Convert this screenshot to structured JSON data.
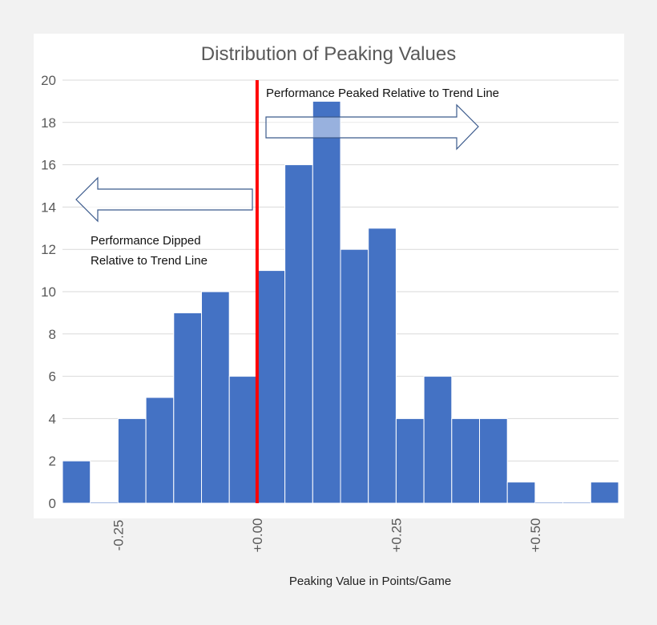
{
  "chart_data": {
    "type": "bar",
    "title": "Distribution of Peaking Values",
    "xlabel": "Peaking Value in Points/Game",
    "ylabel": "",
    "ylim": [
      0,
      20
    ],
    "yticks": [
      "0",
      "2",
      "4",
      "6",
      "8",
      "10",
      "12",
      "14",
      "16",
      "18",
      "20"
    ],
    "bin_width": 0.05,
    "bin_starts": [
      -0.35,
      -0.3,
      -0.25,
      -0.2,
      -0.15,
      -0.1,
      -0.05,
      0.0,
      0.05,
      0.1,
      0.15,
      0.2,
      0.25,
      0.3,
      0.35,
      0.4,
      0.45,
      0.5,
      0.55,
      0.6
    ],
    "values": [
      2,
      0,
      4,
      5,
      9,
      10,
      6,
      11,
      16,
      19,
      12,
      13,
      4,
      6,
      4,
      4,
      1,
      0,
      0,
      1
    ],
    "xticks": [
      {
        "value": -0.25,
        "label": "-0.25"
      },
      {
        "value": 0.0,
        "label": "+0.00"
      },
      {
        "value": 0.25,
        "label": "+0.25"
      },
      {
        "value": 0.5,
        "label": "+0.50"
      }
    ],
    "grid": true,
    "bar_color": "#4472c4",
    "reference_line": {
      "x": 0.0,
      "color": "#ff0000"
    },
    "annotations": {
      "right": "Performance Peaked Relative to Trend Line",
      "left_line1": "Performance Dipped",
      "left_line2": "Relative to Trend Line"
    }
  }
}
